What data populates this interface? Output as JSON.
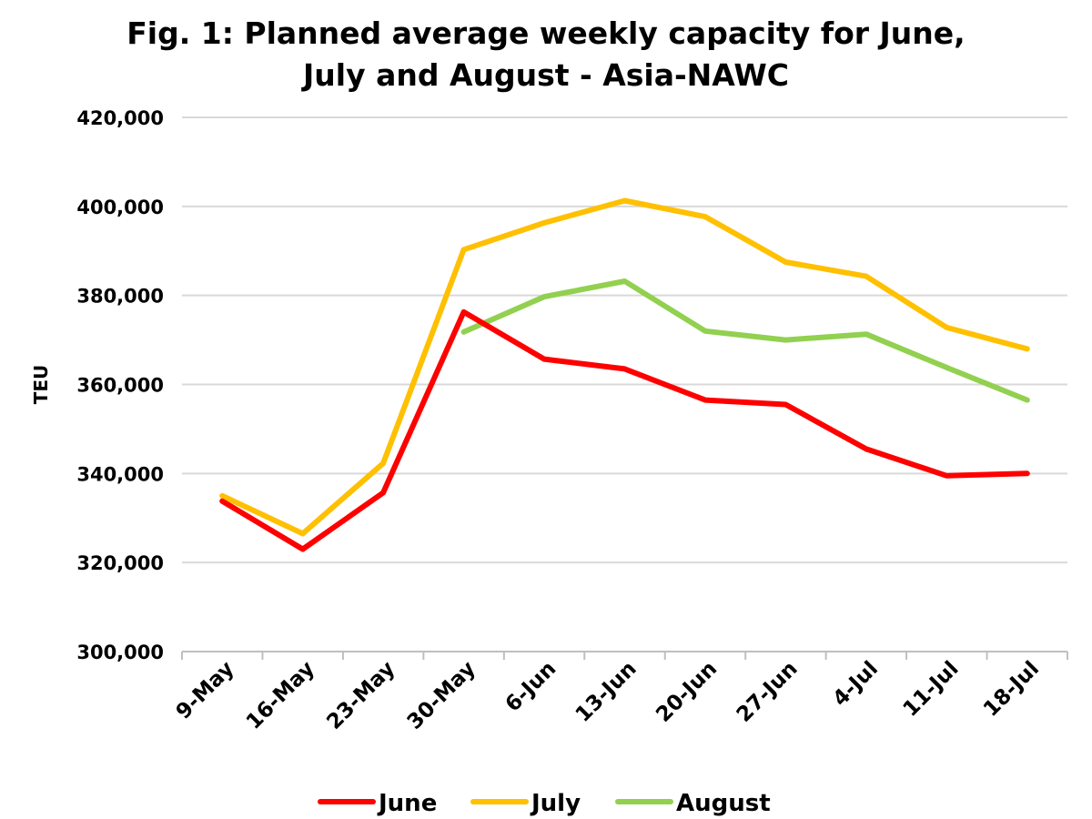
{
  "chart_data": {
    "type": "line",
    "title_lines": [
      "Fig. 1: Planned average weekly capacity for June,",
      "July and August - Asia-NAWC"
    ],
    "xlabel": "",
    "ylabel": "TEU",
    "ylim": [
      300000,
      420000
    ],
    "yticks": [
      300000,
      320000,
      340000,
      360000,
      380000,
      400000,
      420000
    ],
    "ytick_labels": [
      "300,000",
      "320,000",
      "340,000",
      "360,000",
      "380,000",
      "400,000",
      "420,000"
    ],
    "categories": [
      "9-May",
      "16-May",
      "23-May",
      "30-May",
      "6-Jun",
      "13-Jun",
      "20-Jun",
      "27-Jun",
      "4-Jul",
      "11-Jul",
      "18-Jul"
    ],
    "grid": true,
    "legend_position": "bottom",
    "series": [
      {
        "name": "June",
        "color": "#ff0000",
        "values": [
          333800,
          323000,
          335700,
          376300,
          365700,
          363500,
          356500,
          355500,
          345500,
          339500,
          340000
        ]
      },
      {
        "name": "July",
        "color": "#ffc000",
        "values": [
          335000,
          326500,
          342300,
          390300,
          396300,
          401300,
          397700,
          387500,
          384300,
          372800,
          368000
        ]
      },
      {
        "name": "August",
        "color": "#92d050",
        "values": [
          null,
          null,
          null,
          371800,
          379700,
          383200,
          372000,
          370000,
          371300,
          363800,
          356500
        ]
      }
    ]
  }
}
